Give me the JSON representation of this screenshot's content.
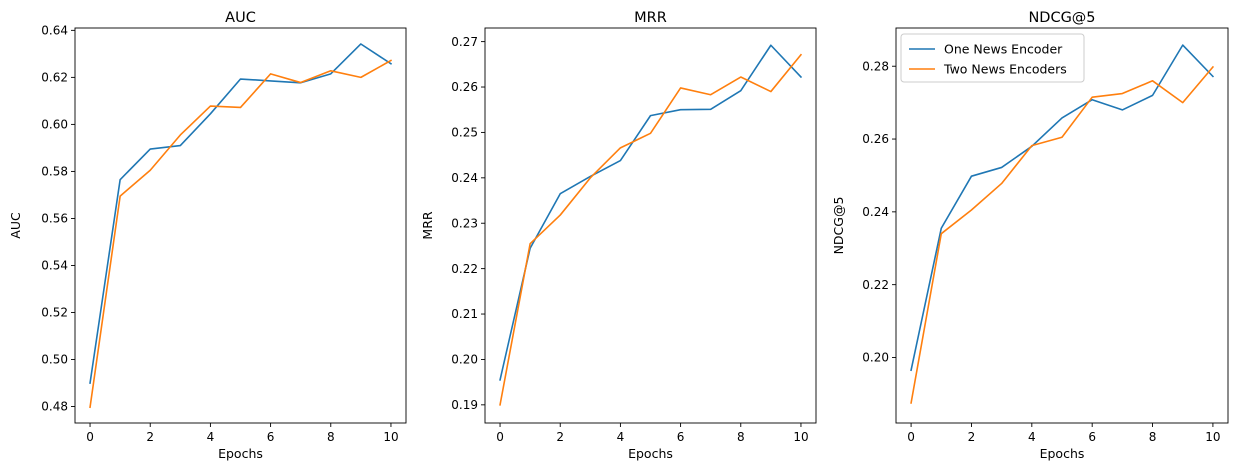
{
  "chart_data": [
    {
      "type": "line",
      "title": "AUC",
      "xlabel": "Epochs",
      "ylabel": "AUC",
      "xlim": [
        -0.5,
        10.5
      ],
      "ylim": [
        0.473,
        0.641
      ],
      "xticks": [
        0,
        2,
        4,
        6,
        8,
        10
      ],
      "yticks": [
        0.48,
        0.5,
        0.52,
        0.54,
        0.56,
        0.58,
        0.6,
        0.62,
        0.64
      ],
      "x": [
        0,
        1,
        2,
        3,
        4,
        5,
        6,
        7,
        8,
        9,
        10
      ],
      "series": [
        {
          "name": "One News Encoder",
          "color": "#1f77b4",
          "values": [
            0.49,
            0.5765,
            0.5895,
            0.591,
            0.6045,
            0.6193,
            0.6185,
            0.6177,
            0.6215,
            0.6342,
            0.6258
          ]
        },
        {
          "name": "Two News Encoders",
          "color": "#ff7f0e",
          "values": [
            0.4797,
            0.5695,
            0.5805,
            0.5955,
            0.6078,
            0.6072,
            0.6215,
            0.6178,
            0.6228,
            0.62,
            0.6272
          ]
        }
      ],
      "legend": null
    },
    {
      "type": "line",
      "title": "MRR",
      "xlabel": "Epochs",
      "ylabel": "MRR",
      "xlim": [
        -0.5,
        10.5
      ],
      "ylim": [
        0.186,
        0.273
      ],
      "xticks": [
        0,
        2,
        4,
        6,
        8,
        10
      ],
      "yticks": [
        0.19,
        0.2,
        0.21,
        0.22,
        0.23,
        0.24,
        0.25,
        0.26,
        0.27
      ],
      "x": [
        0,
        1,
        2,
        3,
        4,
        5,
        6,
        7,
        8,
        9,
        10
      ],
      "series": [
        {
          "name": "One News Encoder",
          "color": "#1f77b4",
          "values": [
            0.1955,
            0.2245,
            0.2365,
            0.2403,
            0.2438,
            0.2537,
            0.255,
            0.2551,
            0.2592,
            0.2692,
            0.2622
          ]
        },
        {
          "name": "Two News Encoders",
          "color": "#ff7f0e",
          "values": [
            0.19,
            0.2255,
            0.2318,
            0.24,
            0.2466,
            0.2498,
            0.2598,
            0.2583,
            0.2622,
            0.259,
            0.2671
          ]
        }
      ],
      "legend": null
    },
    {
      "type": "line",
      "title": "NDCG@5",
      "xlabel": "Epochs",
      "ylabel": "NDCG@5",
      "xlim": [
        -0.5,
        10.5
      ],
      "ylim": [
        0.182,
        0.2905
      ],
      "xticks": [
        0,
        2,
        4,
        6,
        8,
        10
      ],
      "yticks": [
        0.2,
        0.22,
        0.24,
        0.26,
        0.28
      ],
      "x": [
        0,
        1,
        2,
        3,
        4,
        5,
        6,
        7,
        8,
        9,
        10
      ],
      "series": [
        {
          "name": "One News Encoder",
          "color": "#1f77b4",
          "values": [
            0.1965,
            0.2355,
            0.2498,
            0.2522,
            0.258,
            0.2658,
            0.2708,
            0.268,
            0.272,
            0.2858,
            0.2772
          ]
        },
        {
          "name": "Two News Encoders",
          "color": "#ff7f0e",
          "values": [
            0.1875,
            0.234,
            0.2405,
            0.2478,
            0.2582,
            0.2605,
            0.2715,
            0.2725,
            0.276,
            0.27,
            0.2798
          ]
        }
      ],
      "legend": "upper-left"
    }
  ]
}
